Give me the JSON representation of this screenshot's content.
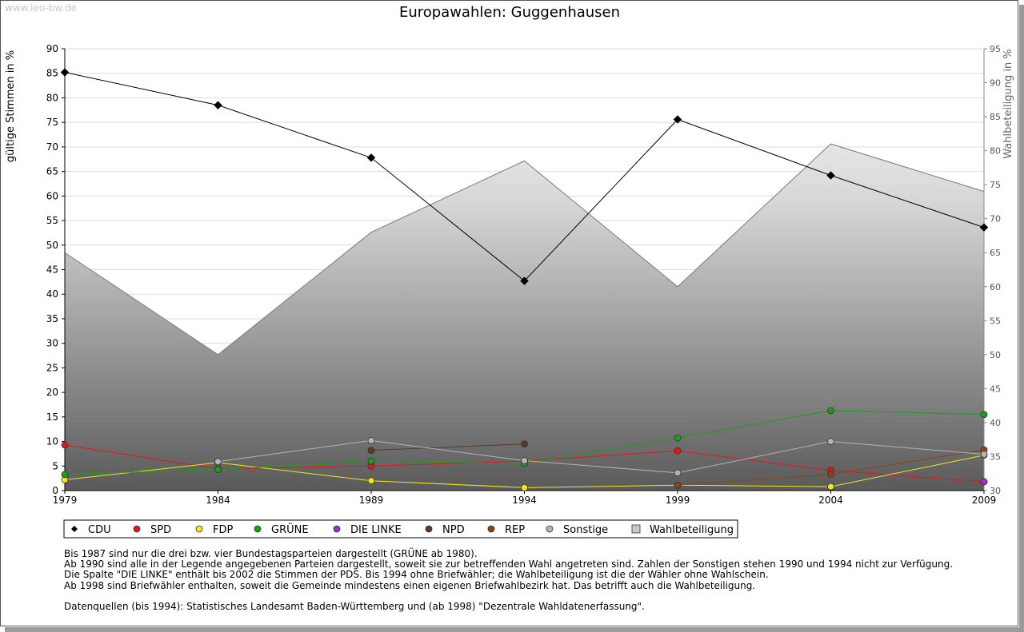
{
  "watermark": "www.leo-bw.de",
  "notes": [
    "Bis 1987 sind nur die drei bzw. vier Bundestagsparteien dargestellt (GRÜNE ab 1980).",
    "Ab 1990 sind alle in der Legende angegebenen Parteien dargestellt, soweit sie zur betreffenden Wahl angetreten sind. Zahlen der Sonstigen stehen 1990 und 1994 nicht zur Verfügung.",
    "Die Spalte \"DIE LINKE\" enthält bis 2002 die Stimmen der PDS. Bis 1994 ohne Briefwähler; die Wahlbeteiligung ist die der Wähler ohne Wahlschein.",
    "Ab 1998 sind Briefwähler enthalten, soweit die Gemeinde mindestens einen eigenen Briefwahlbezirk hat. Das betrifft auch die Wahlbeteiligung."
  ],
  "source_note": "Datenquellen (bis 1994): Statistisches Landesamt Baden-Württemberg und (ab 1998) \"Dezentrale Wahldatenerfassung\".",
  "chart_data": {
    "type": "line",
    "title": "Europawahlen: Guggenhausen",
    "ylabel": "gültige Stimmen in %",
    "y2label": "Wahlbeteiligung in %",
    "ylim": [
      0,
      90
    ],
    "y2lim": [
      30,
      95
    ],
    "yticks": [
      0,
      5,
      10,
      15,
      20,
      25,
      30,
      35,
      40,
      45,
      50,
      55,
      60,
      65,
      70,
      75,
      80,
      85,
      90
    ],
    "y2ticks": [
      30,
      35,
      40,
      45,
      50,
      55,
      60,
      65,
      70,
      75,
      80,
      85,
      90,
      95
    ],
    "x": [
      "1979",
      "1984",
      "1989",
      "1994",
      "1999",
      "2004",
      "2009"
    ],
    "grid": true,
    "legend_position": "bottom",
    "series": [
      {
        "name": "CDU",
        "color": "#000000",
        "values": [
          85.2,
          78.5,
          67.8,
          42.7,
          75.6,
          64.2,
          53.6
        ]
      },
      {
        "name": "SPD",
        "color": "#e8141c",
        "values": [
          9.3,
          4.4,
          5.0,
          6.0,
          8.1,
          4.1,
          1.8
        ]
      },
      {
        "name": "FDP",
        "color": "#f2e61a",
        "values": [
          2.2,
          5.7,
          2.0,
          0.6,
          1.1,
          0.8,
          7.2
        ]
      },
      {
        "name": "GRÜNE",
        "color": "#18a018",
        "values": [
          3.3,
          4.3,
          6.0,
          5.5,
          10.7,
          16.3,
          15.5
        ]
      },
      {
        "name": "DIE LINKE",
        "color": "#9b30c8",
        "values": [
          null,
          null,
          null,
          null,
          null,
          null,
          1.8
        ]
      },
      {
        "name": "NPD",
        "color": "#5a3a28",
        "values": [
          null,
          null,
          8.2,
          9.5,
          null,
          null,
          null
        ]
      },
      {
        "name": "REP",
        "color": "#8b4513",
        "values": [
          null,
          null,
          null,
          null,
          1.1,
          3.3,
          8.3
        ]
      },
      {
        "name": "Sonstige",
        "color": "#b4b4b4",
        "values": [
          null,
          5.9,
          10.2,
          6.1,
          3.6,
          10.0,
          7.4
        ]
      }
    ],
    "area_series": {
      "name": "Wahlbeteiligung",
      "axis": "right",
      "values": [
        65.0,
        50.0,
        68.0,
        78.5,
        60.0,
        81.0,
        74.0
      ]
    }
  }
}
